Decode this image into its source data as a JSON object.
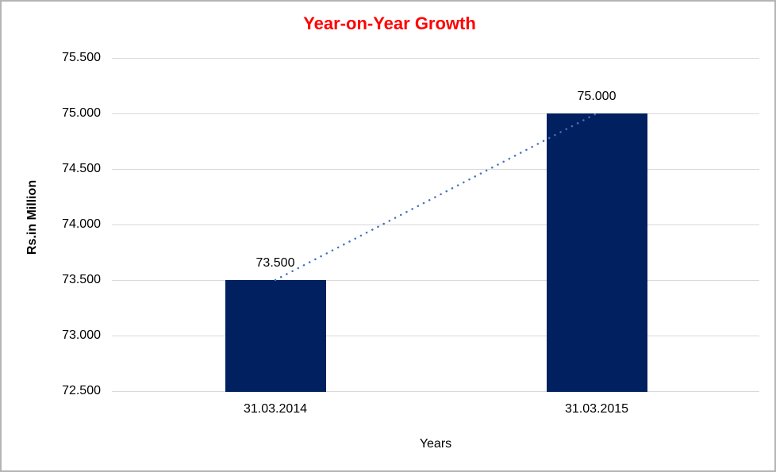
{
  "chart_data": {
    "type": "bar",
    "title": "Year-on-Year Growth",
    "title_color": "#FF0000",
    "xlabel": "Years",
    "ylabel": "Rs.in Million",
    "categories": [
      "31.03.2014",
      "31.03.2015"
    ],
    "values": [
      73500,
      75000
    ],
    "data_labels": [
      "73.500",
      "75.000"
    ],
    "ylim": [
      72500,
      75500
    ],
    "ytick_interval": 500,
    "ytick_values": [
      75500,
      75000,
      74500,
      74000,
      73500,
      73000,
      72500
    ],
    "ytick_labels": [
      "75.500",
      "75.000",
      "74.500",
      "74.000",
      "73.500",
      "73.000",
      "72.500"
    ],
    "grid": true,
    "legend": false,
    "bar_color": "#002060",
    "gridline_color": "#D9D9D9",
    "trendline": {
      "style": "dotted",
      "color": "#4472C4",
      "from_value": 73500,
      "to_value": 75000
    }
  }
}
